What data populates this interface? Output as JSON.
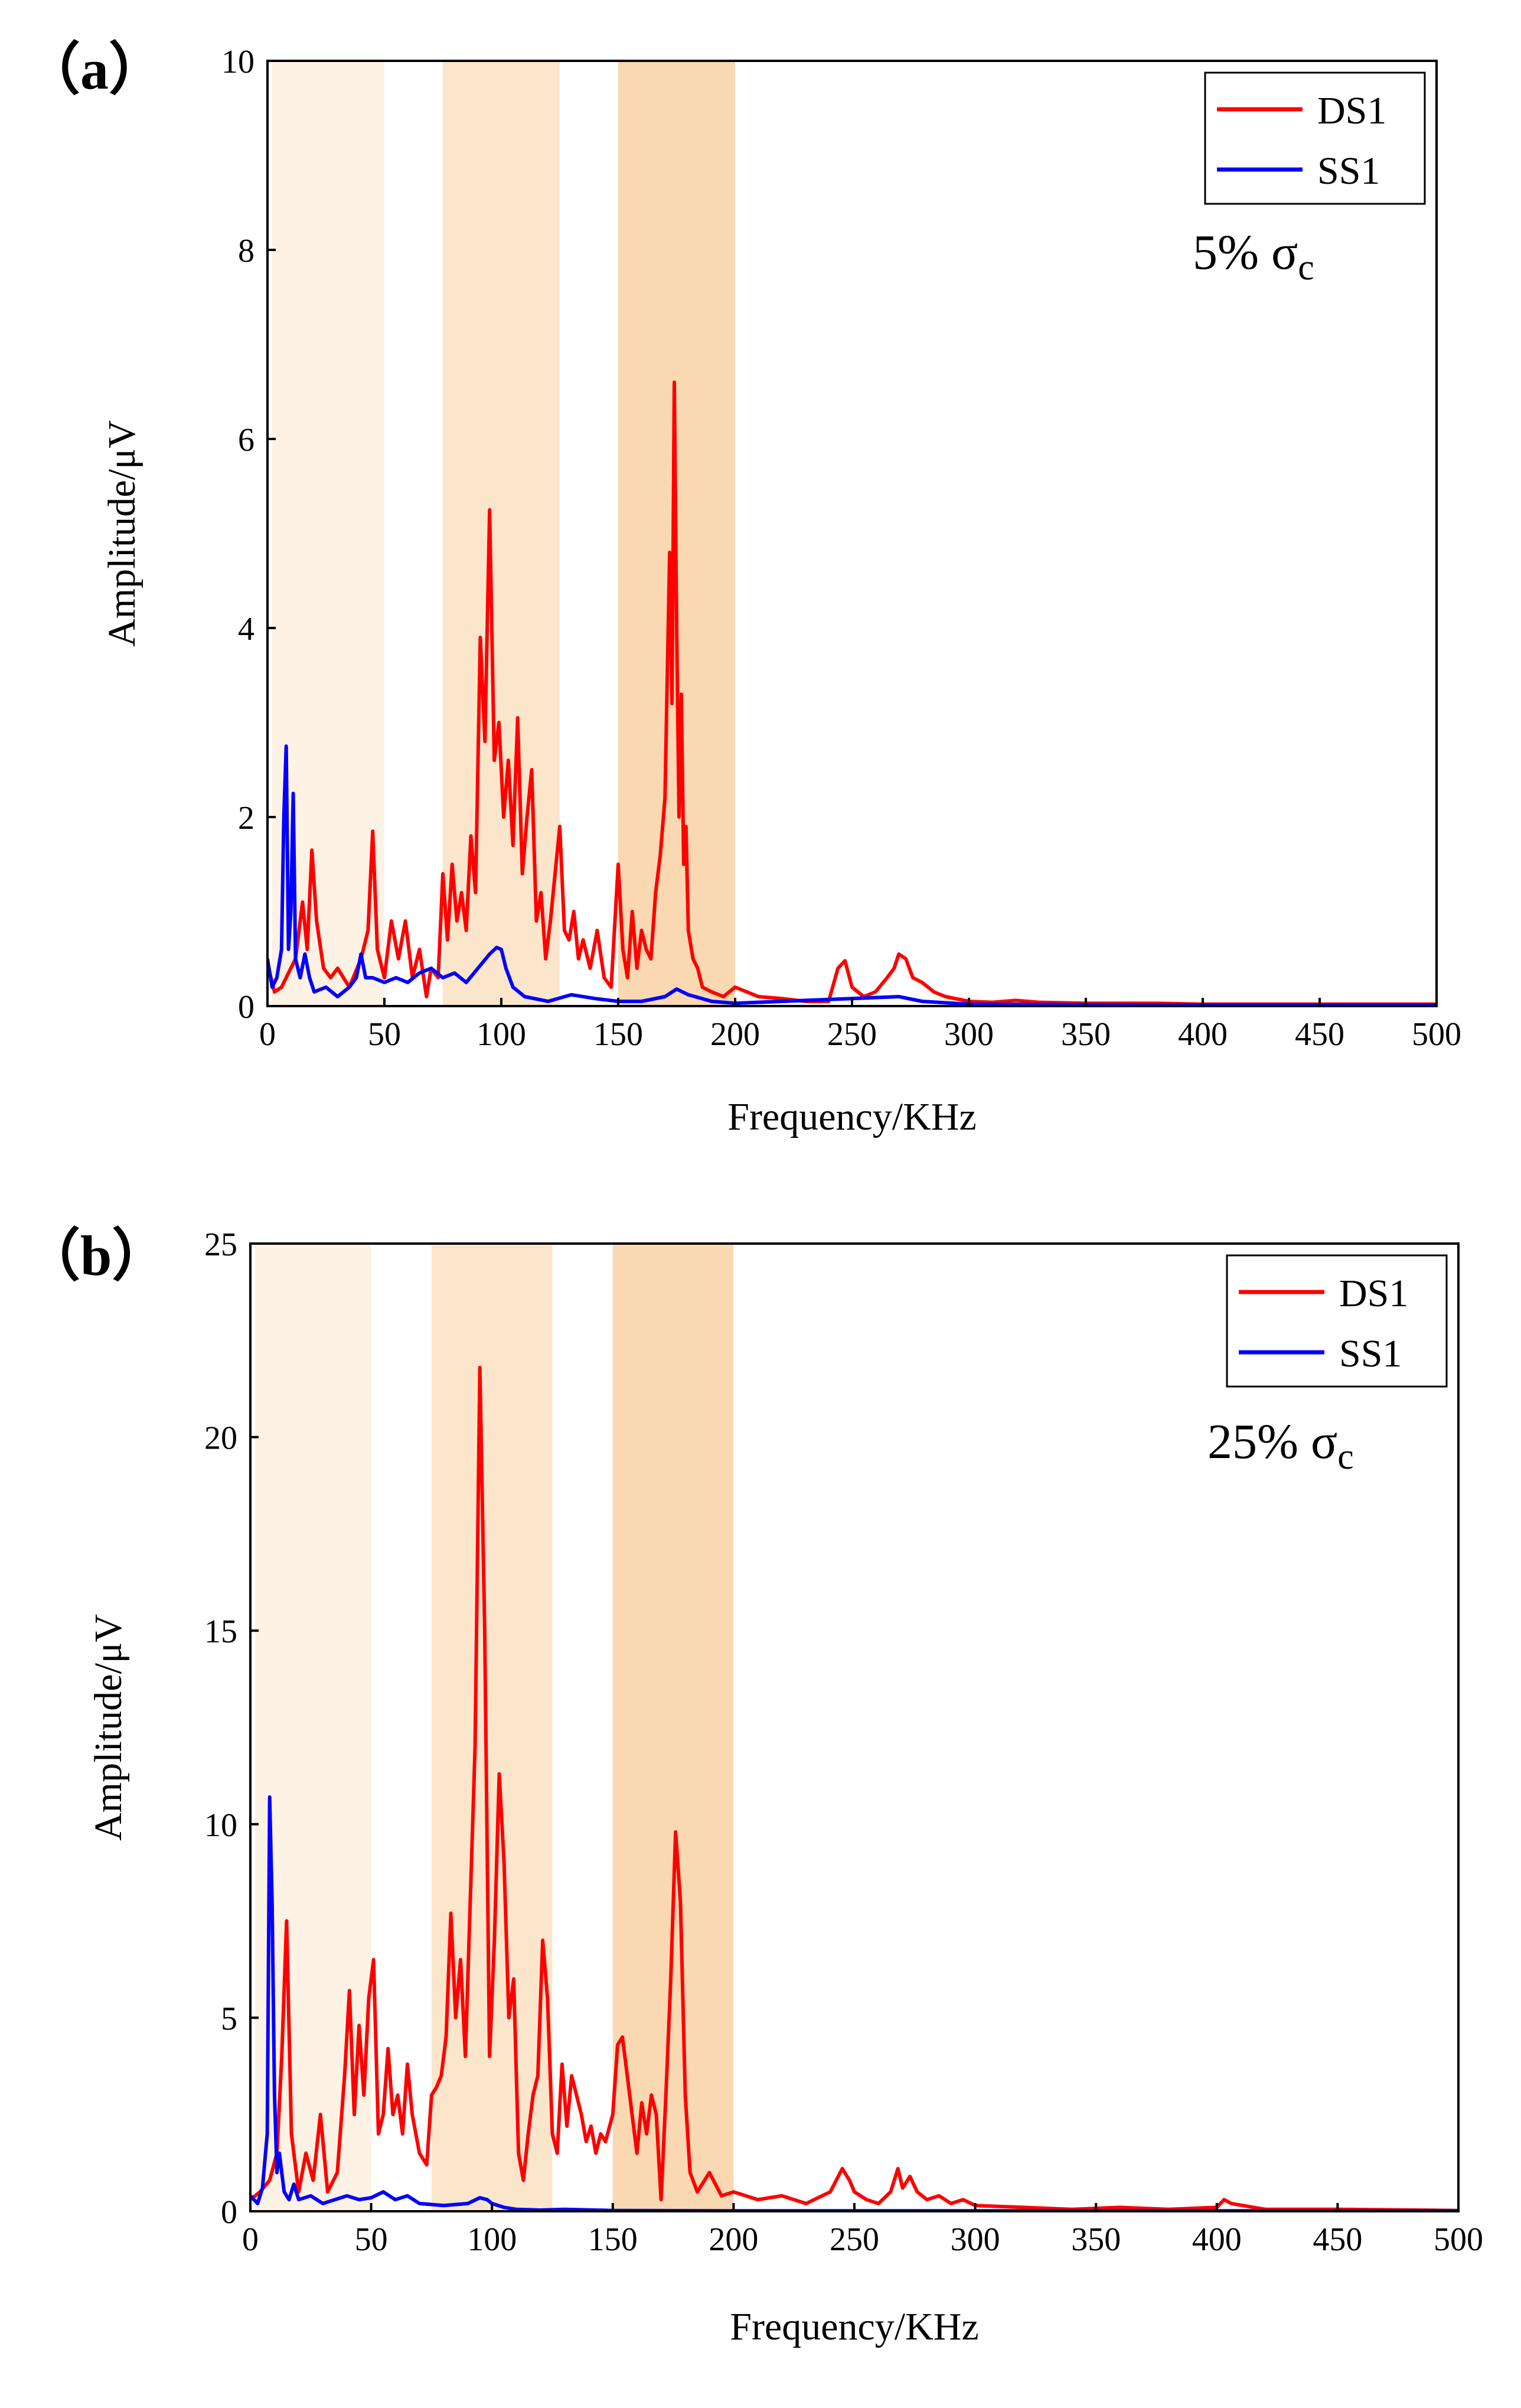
{
  "colors": {
    "ds1": "#ff0000",
    "ss1": "#0000ff",
    "band1": "#fdf2e3",
    "band2": "#fbe6cc",
    "band3": "#f9d8b2"
  },
  "chart_data": [
    {
      "type": "line",
      "panel_label": "（a）",
      "xlabel": "Frequency/KHz",
      "ylabel": "Amplitude/μV",
      "xlim": [
        0,
        500
      ],
      "ylim": [
        0,
        10
      ],
      "xticks": [
        0,
        50,
        100,
        150,
        200,
        250,
        300,
        350,
        400,
        450,
        500
      ],
      "yticks": [
        0,
        2,
        4,
        6,
        8,
        10
      ],
      "annotation": {
        "main": "5% σ",
        "sub": "c"
      },
      "legend": [
        "DS1",
        "SS1"
      ],
      "legend_position": "top-right",
      "shaded_bands": [
        [
          2,
          50
        ],
        [
          75,
          125
        ],
        [
          150,
          200
        ]
      ],
      "series": [
        {
          "name": "DS1",
          "x": [
            0,
            3,
            6,
            9,
            12,
            15,
            17,
            19,
            21,
            24,
            27,
            30,
            35,
            40,
            43,
            45,
            47,
            50,
            53,
            56,
            59,
            62,
            65,
            68,
            70,
            73,
            75,
            77,
            79,
            81,
            83,
            85,
            87,
            89,
            91,
            93,
            95,
            97,
            99,
            101,
            103,
            105,
            107,
            109,
            111,
            113,
            115,
            117,
            119,
            121,
            123,
            125,
            127,
            129,
            131,
            133,
            135,
            138,
            141,
            144,
            147,
            150,
            152,
            154,
            156,
            158,
            160,
            162,
            164,
            166,
            168,
            170,
            172,
            173,
            174,
            175,
            176,
            177,
            178,
            179,
            180,
            182,
            184,
            186,
            190,
            195,
            200,
            210,
            220,
            230,
            240,
            244,
            247,
            250,
            255,
            260,
            265,
            268,
            270,
            273,
            276,
            280,
            285,
            290,
            300,
            310,
            320,
            330,
            350,
            380,
            400,
            450,
            500
          ],
          "y": [
            0.45,
            0.15,
            0.2,
            0.35,
            0.5,
            1.1,
            0.6,
            1.65,
            0.9,
            0.4,
            0.3,
            0.4,
            0.2,
            0.5,
            0.8,
            1.85,
            0.6,
            0.3,
            0.9,
            0.5,
            0.9,
            0.3,
            0.6,
            0.1,
            0.4,
            0.3,
            1.4,
            0.7,
            1.5,
            0.9,
            1.2,
            0.8,
            1.8,
            1.2,
            3.9,
            2.8,
            5.25,
            2.6,
            3.0,
            2.0,
            2.6,
            1.7,
            3.05,
            1.4,
            2.0,
            2.5,
            0.9,
            1.2,
            0.5,
            0.9,
            1.4,
            1.9,
            0.8,
            0.7,
            1.0,
            0.5,
            0.7,
            0.4,
            0.8,
            0.3,
            0.2,
            1.5,
            0.6,
            0.3,
            1.0,
            0.4,
            0.8,
            0.6,
            0.5,
            1.2,
            1.6,
            2.2,
            4.8,
            3.2,
            6.6,
            4.0,
            2.0,
            3.3,
            1.5,
            1.9,
            0.8,
            0.5,
            0.4,
            0.2,
            0.15,
            0.1,
            0.2,
            0.1,
            0.08,
            0.05,
            0.05,
            0.4,
            0.48,
            0.2,
            0.1,
            0.15,
            0.3,
            0.4,
            0.55,
            0.5,
            0.3,
            0.25,
            0.15,
            0.1,
            0.05,
            0.04,
            0.06,
            0.04,
            0.03,
            0.03,
            0.02,
            0.02,
            0.02
          ]
        },
        {
          "name": "SS1",
          "x": [
            0,
            2,
            4,
            6,
            7,
            8,
            9,
            10,
            11,
            12,
            14,
            16,
            18,
            20,
            25,
            30,
            35,
            38,
            40,
            42,
            45,
            50,
            55,
            60,
            65,
            70,
            75,
            80,
            85,
            90,
            95,
            98,
            100,
            102,
            105,
            110,
            120,
            130,
            140,
            150,
            160,
            170,
            175,
            180,
            190,
            200,
            250,
            270,
            280,
            300,
            400,
            500
          ],
          "y": [
            0.5,
            0.2,
            0.3,
            0.6,
            2.0,
            2.75,
            0.6,
            1.0,
            2.25,
            0.5,
            0.3,
            0.55,
            0.3,
            0.15,
            0.2,
            0.1,
            0.2,
            0.3,
            0.55,
            0.3,
            0.3,
            0.25,
            0.3,
            0.25,
            0.35,
            0.4,
            0.3,
            0.35,
            0.25,
            0.4,
            0.55,
            0.62,
            0.6,
            0.4,
            0.2,
            0.1,
            0.05,
            0.12,
            0.08,
            0.05,
            0.05,
            0.1,
            0.18,
            0.12,
            0.05,
            0.03,
            0.08,
            0.1,
            0.05,
            0.02,
            0.01,
            0.01
          ]
        }
      ]
    },
    {
      "type": "line",
      "panel_label": "（b）",
      "xlabel": "Frequency/KHz",
      "ylabel": "Amplitude/μV",
      "xlim": [
        0,
        500
      ],
      "ylim": [
        0,
        25
      ],
      "xticks": [
        0,
        50,
        100,
        150,
        200,
        250,
        300,
        350,
        400,
        450,
        500
      ],
      "yticks": [
        0,
        5,
        10,
        15,
        20,
        25
      ],
      "annotation": {
        "main": "25% σ",
        "sub": "c"
      },
      "legend": [
        "DS1",
        "SS1"
      ],
      "legend_position": "top-right",
      "shaded_bands": [
        [
          2,
          50
        ],
        [
          75,
          125
        ],
        [
          150,
          200
        ]
      ],
      "series": [
        {
          "name": "DS1",
          "x": [
            0,
            4,
            8,
            11,
            13,
            15,
            17,
            20,
            23,
            26,
            29,
            32,
            36,
            39,
            41,
            43,
            45,
            47,
            49,
            51,
            53,
            55,
            57,
            59,
            61,
            63,
            65,
            67,
            70,
            73,
            75,
            77,
            79,
            81,
            83,
            85,
            87,
            89,
            91,
            93,
            95,
            97,
            99,
            101,
            103,
            105,
            107,
            109,
            111,
            113,
            115,
            117,
            119,
            121,
            123,
            125,
            127,
            129,
            131,
            133,
            135,
            137,
            139,
            141,
            143,
            145,
            147,
            150,
            152,
            154,
            156,
            158,
            160,
            162,
            164,
            166,
            168,
            170,
            172,
            174,
            176,
            178,
            180,
            182,
            185,
            190,
            195,
            200,
            210,
            220,
            230,
            240,
            245,
            248,
            250,
            255,
            260,
            265,
            268,
            270,
            273,
            276,
            280,
            285,
            290,
            295,
            300,
            320,
            340,
            360,
            380,
            400,
            403,
            406,
            420,
            450,
            500
          ],
          "y": [
            0.3,
            0.5,
            0.8,
            1.5,
            4.0,
            7.5,
            2.0,
            0.5,
            1.5,
            0.8,
            2.5,
            0.5,
            1.0,
            3.5,
            5.7,
            2.5,
            4.8,
            3.0,
            5.5,
            6.5,
            2.0,
            2.5,
            4.2,
            2.5,
            3.0,
            2.0,
            3.8,
            2.5,
            1.5,
            1.2,
            3.0,
            3.2,
            3.5,
            4.5,
            7.7,
            5.0,
            6.5,
            4.0,
            8.0,
            12.0,
            21.8,
            15.0,
            4.0,
            7.0,
            11.3,
            9.0,
            5.0,
            6.0,
            1.5,
            0.8,
            2.0,
            3.0,
            3.5,
            7.0,
            5.5,
            2.0,
            1.5,
            3.8,
            2.2,
            3.5,
            3.0,
            2.5,
            1.8,
            2.2,
            1.5,
            2.0,
            1.8,
            2.5,
            4.3,
            4.5,
            3.5,
            2.5,
            1.5,
            2.8,
            2.0,
            3.0,
            2.5,
            0.3,
            3.0,
            6.0,
            9.8,
            8.0,
            3.0,
            1.0,
            0.5,
            1.0,
            0.4,
            0.5,
            0.3,
            0.4,
            0.2,
            0.5,
            1.1,
            0.8,
            0.5,
            0.3,
            0.2,
            0.5,
            1.1,
            0.6,
            0.9,
            0.5,
            0.3,
            0.4,
            0.2,
            0.3,
            0.15,
            0.1,
            0.05,
            0.1,
            0.05,
            0.1,
            0.3,
            0.2,
            0.05,
            0.05,
            0.02
          ]
        },
        {
          "name": "SS1",
          "x": [
            0,
            3,
            5,
            7,
            8,
            9,
            10,
            11,
            12,
            14,
            16,
            18,
            20,
            25,
            30,
            35,
            40,
            45,
            50,
            55,
            60,
            65,
            70,
            80,
            90,
            95,
            98,
            100,
            105,
            110,
            120,
            130,
            150,
            200,
            300,
            400,
            500
          ],
          "y": [
            0.4,
            0.2,
            0.6,
            2.0,
            10.7,
            8.0,
            3.0,
            1.0,
            1.5,
            0.5,
            0.3,
            0.7,
            0.3,
            0.4,
            0.2,
            0.3,
            0.4,
            0.3,
            0.35,
            0.5,
            0.3,
            0.4,
            0.2,
            0.15,
            0.2,
            0.35,
            0.3,
            0.2,
            0.1,
            0.05,
            0.03,
            0.05,
            0.02,
            0.01,
            0.01,
            0.01,
            0.01
          ]
        }
      ]
    }
  ]
}
